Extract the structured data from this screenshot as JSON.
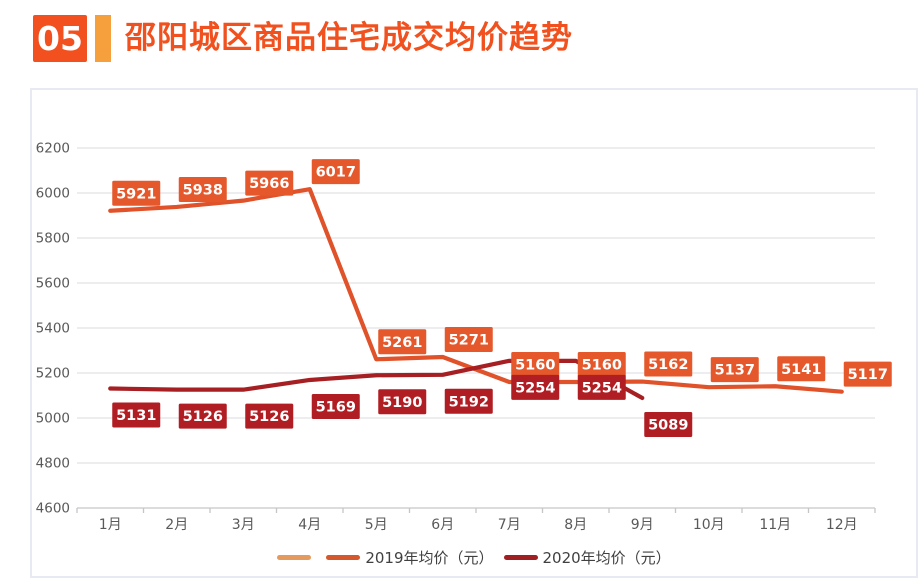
{
  "header": {
    "number": "05",
    "title": "邵阳城区商品住宅成交均价趋势"
  },
  "colors": {
    "badge_bg": "#F2511F",
    "accent_bar": "#F5A03C",
    "title_text": "#F0511E",
    "axis_text": "#595959",
    "gridline": "#E2E2E6",
    "axis_line": "#C6C6C9",
    "legend_text": "#404040"
  },
  "chart_data": {
    "type": "line",
    "title": "邵阳城区商品住宅成交均价趋势",
    "categories": [
      "1月",
      "2月",
      "3月",
      "4月",
      "5月",
      "6月",
      "7月",
      "8月",
      "9月",
      "10月",
      "11月",
      "12月"
    ],
    "series": [
      {
        "name": "2019年均价（元）",
        "color": "#E0522A",
        "label_bg": "#E4582B",
        "label_position": "above",
        "values": [
          5921,
          5938,
          5966,
          6017,
          5261,
          5271,
          5160,
          5160,
          5162,
          5137,
          5141,
          5117
        ]
      },
      {
        "name": "2020年均价（元）",
        "color": "#A61F23",
        "label_bg": "#B01E23",
        "label_position": "below",
        "values": [
          5131,
          5126,
          5126,
          5169,
          5190,
          5192,
          5254,
          5254,
          5089
        ]
      }
    ],
    "ylim": [
      4600,
      6200
    ],
    "yticks": [
      4600,
      4800,
      5000,
      5200,
      5400,
      5600,
      5800,
      6000,
      6200
    ],
    "grid": "horizontal",
    "legend_position": "bottom",
    "legend": [
      {
        "label": "",
        "color": "#E49A5C"
      },
      {
        "label": "2019年均价（元）",
        "color": "#D4582B"
      },
      {
        "label": "2020年均价（元）",
        "color": "#A01F23"
      }
    ]
  }
}
